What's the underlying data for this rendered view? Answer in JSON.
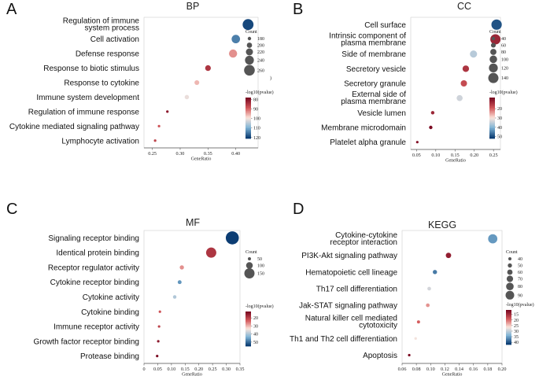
{
  "chart_data": [
    {
      "type": "scatter",
      "panel": "A",
      "title": "BP",
      "xlabel": "GeneRatio",
      "xlim": [
        0.235,
        0.44
      ],
      "xticks": [
        "0.25",
        "0.30",
        "0.35",
        "0.40"
      ],
      "xtick_values": [
        0.25,
        0.3,
        0.35,
        0.4
      ],
      "categories": [
        [
          "Regulation of immune",
          "system process"
        ],
        [
          "Cell activation"
        ],
        [
          "Defense response"
        ],
        [
          "Response to biotic stimulus"
        ],
        [
          "Response to cytokine"
        ],
        [
          "Immune system development"
        ],
        [
          "Regulation of immune response"
        ],
        [
          "Cytokine mediated signaling pathway"
        ],
        [
          "Lymphocyte activation"
        ]
      ],
      "points": [
        {
          "x": 0.422,
          "count": 262,
          "logp": 120
        },
        {
          "x": 0.4,
          "count": 235,
          "logp": 115
        },
        {
          "x": 0.395,
          "count": 232,
          "logp": 93
        },
        {
          "x": 0.35,
          "count": 205,
          "logp": 84
        },
        {
          "x": 0.33,
          "count": 195,
          "logp": 96
        },
        {
          "x": 0.312,
          "count": 190,
          "logp": 101
        },
        {
          "x": 0.277,
          "count": 170,
          "logp": 80
        },
        {
          "x": 0.262,
          "count": 168,
          "logp": 88
        },
        {
          "x": 0.255,
          "count": 160,
          "logp": 86
        }
      ],
      "legend": {
        "count_title": "Count",
        "count_values": [
          "180",
          "200",
          "220",
          "240",
          "260"
        ],
        "count_sizes": [
          180,
          200,
          220,
          240,
          260
        ],
        "count_clipped_label": ")",
        "color_title": "-log10(pvalue)",
        "color_ticks": [
          "80",
          "90",
          "100",
          "110",
          "120"
        ],
        "color_tick_values": [
          80,
          90,
          100,
          110,
          120
        ],
        "color_range": [
          78,
          121
        ]
      }
    },
    {
      "type": "scatter",
      "panel": "B",
      "title": "CC",
      "xlabel": "GeneRatio",
      "xlim": [
        0.035,
        0.268
      ],
      "xticks": [
        "0.05",
        "0.10",
        "0.15",
        "0.20",
        "0.25"
      ],
      "xtick_values": [
        0.05,
        0.1,
        0.15,
        0.2,
        0.25
      ],
      "categories": [
        [
          "Cell surface"
        ],
        [
          "Intrinsic component of",
          "plasma membrane"
        ],
        [
          "Side of membrane"
        ],
        [
          "Secretory vesicle"
        ],
        [
          "Secretory granule"
        ],
        [
          "External side of",
          "plasma membrane"
        ],
        [
          "Vesicle lumen"
        ],
        [
          "Membrane microdomain"
        ],
        [
          "Platelet alpha granule"
        ]
      ],
      "points": [
        {
          "x": 0.258,
          "count": 142,
          "logp": 50
        },
        {
          "x": 0.255,
          "count": 140,
          "logp": 12
        },
        {
          "x": 0.198,
          "count": 95,
          "logp": 36
        },
        {
          "x": 0.178,
          "count": 85,
          "logp": 14
        },
        {
          "x": 0.173,
          "count": 82,
          "logp": 17
        },
        {
          "x": 0.162,
          "count": 78,
          "logp": 34
        },
        {
          "x": 0.092,
          "count": 40,
          "logp": 12
        },
        {
          "x": 0.087,
          "count": 40,
          "logp": 8
        },
        {
          "x": 0.052,
          "count": 25,
          "logp": 9
        }
      ],
      "legend": {
        "count_title": "Count",
        "count_values": [
          "40",
          "60",
          "80",
          "100",
          "120",
          "140"
        ],
        "count_sizes": [
          40,
          60,
          80,
          100,
          120,
          140
        ],
        "color_title": "-log10(pvalue)",
        "color_ticks": [
          "20",
          "30",
          "40",
          "50"
        ],
        "color_tick_values": [
          20,
          30,
          40,
          50
        ],
        "color_range": [
          8,
          52
        ]
      }
    },
    {
      "type": "scatter",
      "panel": "C",
      "title": "MF",
      "xlabel": "GeneRatio",
      "xlim": [
        0.0,
        0.35
      ],
      "xticks": [
        "0",
        "0.05",
        "0.10",
        "0.15",
        "0.20",
        "0.25",
        "0.30",
        "0.35"
      ],
      "xtick_values": [
        0,
        0.05,
        0.1,
        0.15,
        0.2,
        0.25,
        0.3,
        0.35
      ],
      "categories": [
        [
          "Signaling receptor binding"
        ],
        [
          "Identical protein binding"
        ],
        [
          "Receptor regulator activity"
        ],
        [
          "Cytokine receptor binding"
        ],
        [
          "Cytokine activity"
        ],
        [
          "Cytokine binding"
        ],
        [
          "Immune receptor activity"
        ],
        [
          "Growth factor receptor binding"
        ],
        [
          "Protease binding"
        ]
      ],
      "points": [
        {
          "x": 0.322,
          "count": 190,
          "logp": 55
        },
        {
          "x": 0.245,
          "count": 150,
          "logp": 18
        },
        {
          "x": 0.138,
          "count": 65,
          "logp": 27
        },
        {
          "x": 0.13,
          "count": 60,
          "logp": 47
        },
        {
          "x": 0.112,
          "count": 55,
          "logp": 40
        },
        {
          "x": 0.058,
          "count": 35,
          "logp": 22
        },
        {
          "x": 0.055,
          "count": 32,
          "logp": 20
        },
        {
          "x": 0.052,
          "count": 30,
          "logp": 14
        },
        {
          "x": 0.048,
          "count": 28,
          "logp": 12
        }
      ],
      "legend": {
        "count_title": "Count",
        "count_values": [
          "50",
          "100",
          "150"
        ],
        "count_sizes": [
          50,
          100,
          150
        ],
        "color_title": "-log10(pvalue)",
        "color_ticks": [
          "20",
          "30",
          "40",
          "50"
        ],
        "color_tick_values": [
          20,
          30,
          40,
          50
        ],
        "color_range": [
          12,
          55
        ]
      }
    },
    {
      "type": "scatter",
      "panel": "D",
      "title": "KEGG",
      "xlabel": "GeneRatio",
      "xlim": [
        0.06,
        0.2
      ],
      "xticks": [
        "0.06",
        "0.08",
        "0.10",
        "0.12",
        "0.14",
        "0.16",
        "0.18",
        "0.20"
      ],
      "xtick_values": [
        0.06,
        0.08,
        0.1,
        0.12,
        0.14,
        0.16,
        0.18,
        0.2
      ],
      "categories": [
        [
          "Cytokine-cytokine",
          "receptor interaction"
        ],
        [
          "PI3K-Akt signaling pathway"
        ],
        [
          "Hematopoietic cell lineage"
        ],
        [
          "Th17 cell differentiation"
        ],
        [
          "Jak-STAT signaling pathway"
        ],
        [
          "Natural killer cell mediated",
          "cytotoxicity"
        ],
        [
          "Th1 and Th2 cell differentiation"
        ],
        [
          "Apoptosis"
        ]
      ],
      "points": [
        {
          "x": 0.187,
          "count": 95,
          "logp": 36
        },
        {
          "x": 0.125,
          "count": 60,
          "logp": 13
        },
        {
          "x": 0.106,
          "count": 50,
          "logp": 38
        },
        {
          "x": 0.098,
          "count": 45,
          "logp": 29
        },
        {
          "x": 0.096,
          "count": 45,
          "logp": 22
        },
        {
          "x": 0.083,
          "count": 40,
          "logp": 19
        },
        {
          "x": 0.079,
          "count": 35,
          "logp": 27
        },
        {
          "x": 0.07,
          "count": 30,
          "logp": 11
        }
      ],
      "legend": {
        "count_title": "Count",
        "count_values": [
          "40",
          "50",
          "60",
          "70",
          "80",
          "90"
        ],
        "count_sizes": [
          40,
          50,
          60,
          70,
          80,
          90
        ],
        "color_title": "-log10(pvalue)",
        "color_ticks": [
          "15",
          "20",
          "25",
          "30",
          "35",
          "40"
        ],
        "color_tick_values": [
          15,
          20,
          25,
          30,
          35,
          40
        ],
        "color_range": [
          11,
          42
        ]
      }
    }
  ],
  "colors": {
    "low": "#7b0a22",
    "low_mid": "#d4595b",
    "mid": "#fbe5dc",
    "high_mid": "#7fb4d6",
    "high": "#0c3d73",
    "panel_bg": "#ffffff",
    "axis": "#555555",
    "legend_dot": "#555555"
  }
}
